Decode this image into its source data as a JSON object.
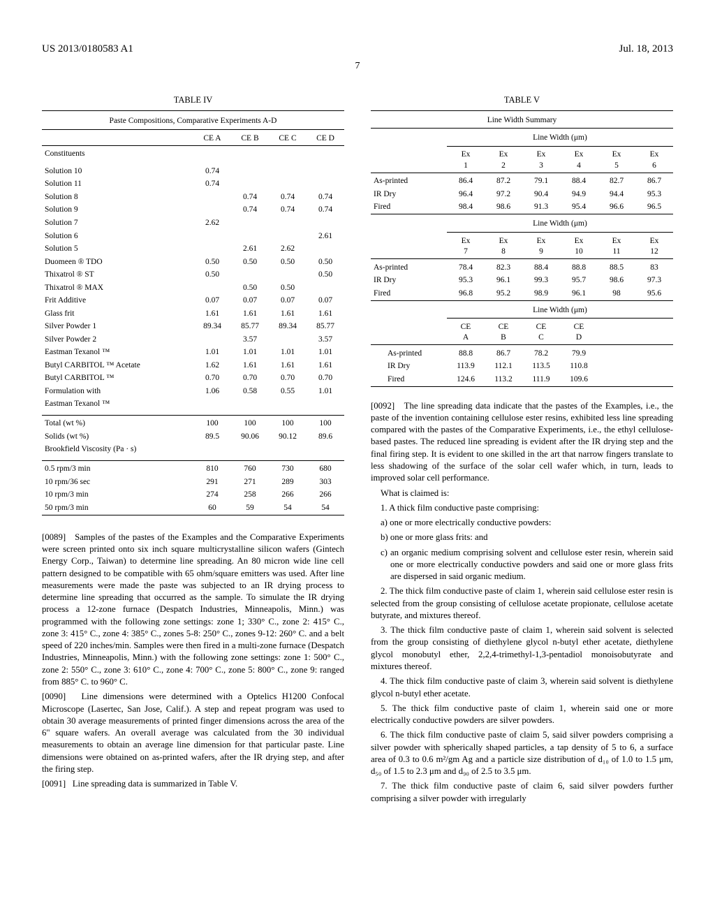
{
  "header": {
    "pub_number": "US 2013/0180583 A1",
    "date": "Jul. 18, 2013",
    "page_number": "7"
  },
  "table4": {
    "title": "TABLE IV",
    "subtitle": "Paste Compositions, Comparative Experiments A-D",
    "col_headers": [
      "CE A",
      "CE B",
      "CE C",
      "CE D"
    ],
    "constituents_label": "Constituents",
    "rows": [
      {
        "label": "Solution 10",
        "vals": [
          "0.74",
          "",
          "",
          ""
        ]
      },
      {
        "label": "Solution 11",
        "vals": [
          "0.74",
          "",
          "",
          ""
        ]
      },
      {
        "label": "Solution 8",
        "vals": [
          "",
          "0.74",
          "0.74",
          "0.74"
        ]
      },
      {
        "label": "Solution 9",
        "vals": [
          "",
          "0.74",
          "0.74",
          "0.74"
        ]
      },
      {
        "label": "Solution 7",
        "vals": [
          "2.62",
          "",
          "",
          ""
        ]
      },
      {
        "label": "Solution 6",
        "vals": [
          "",
          "",
          "",
          "2.61"
        ]
      },
      {
        "label": "Solution 5",
        "vals": [
          "",
          "2.61",
          "2.62",
          ""
        ]
      },
      {
        "label": "Duomeen ® TDO",
        "vals": [
          "0.50",
          "0.50",
          "0.50",
          "0.50"
        ]
      },
      {
        "label": "Thixatrol ® ST",
        "vals": [
          "0.50",
          "",
          "",
          "0.50"
        ]
      },
      {
        "label": "Thixatrol ® MAX",
        "vals": [
          "",
          "0.50",
          "0.50",
          ""
        ]
      },
      {
        "label": "Frit Additive",
        "vals": [
          "0.07",
          "0.07",
          "0.07",
          "0.07"
        ]
      },
      {
        "label": "Glass frit",
        "vals": [
          "1.61",
          "1.61",
          "1.61",
          "1.61"
        ]
      },
      {
        "label": "Silver Powder 1",
        "vals": [
          "89.34",
          "85.77",
          "89.34",
          "85.77"
        ]
      },
      {
        "label": "Silver Powder 2",
        "vals": [
          "",
          "3.57",
          "",
          "3.57"
        ]
      },
      {
        "label": "Eastman Texanol ™",
        "vals": [
          "1.01",
          "1.01",
          "1.01",
          "1.01"
        ]
      },
      {
        "label": "Butyl CARBITOL ™ Acetate",
        "vals": [
          "1.62",
          "1.61",
          "1.61",
          "1.61"
        ]
      },
      {
        "label": "Butyl CARBITOL ™",
        "vals": [
          "0.70",
          "0.70",
          "0.70",
          "0.70"
        ]
      },
      {
        "label": "Formulation with",
        "vals": [
          "1.06",
          "0.58",
          "0.55",
          "1.01"
        ]
      },
      {
        "label": "Eastman Texanol ™",
        "vals": [
          "",
          "",
          "",
          ""
        ]
      }
    ],
    "totals": [
      {
        "label": "Total (wt %)",
        "vals": [
          "100",
          "100",
          "100",
          "100"
        ]
      },
      {
        "label": "Solids (wt %)",
        "vals": [
          "89.5",
          "90.06",
          "90.12",
          "89.6"
        ]
      },
      {
        "label": "Brookfield Viscosity (Pa · s)",
        "vals": [
          "",
          "",
          "",
          ""
        ]
      }
    ],
    "visc": [
      {
        "label": "0.5 rpm/3 min",
        "vals": [
          "810",
          "760",
          "730",
          "680"
        ]
      },
      {
        "label": "10 rpm/36 sec",
        "vals": [
          "291",
          "271",
          "289",
          "303"
        ]
      },
      {
        "label": "10 rpm/3 min",
        "vals": [
          "274",
          "258",
          "266",
          "266"
        ]
      },
      {
        "label": "50 rpm/3 min",
        "vals": [
          "60",
          "59",
          "54",
          "54"
        ]
      }
    ]
  },
  "para89": {
    "num": "[0089]",
    "text": "Samples of the pastes of the Examples and the Comparative Experiments were screen printed onto six inch square multicrystalline silicon wafers (Gintech Energy Corp., Taiwan) to determine line spreading. An 80 micron wide line cell pattern designed to be compatible with 65 ohm/square emitters was used. After line measurements were made the paste was subjected to an IR drying process to determine line spreading that occurred as the sample. To simulate the IR drying process a 12-zone furnace (Despatch Industries, Minneapolis, Minn.) was programmed with the following zone settings: zone 1; 330° C., zone 2: 415° C., zone 3: 415° C., zone 4: 385° C., zones 5-8: 250° C., zones 9-12: 260° C. and a belt speed of 220 inches/min. Samples were then fired in a multi-zone furnace (Despatch Industries, Minneapolis, Minn.) with the following zone settings: zone 1: 500° C., zone 2: 550° C., zone 3: 610° C., zone 4: 700° C., zone 5: 800° C., zone 9: ranged from 885° C. to 960° C."
  },
  "para90": {
    "num": "[0090]",
    "text": "Line dimensions were determined with a Optelics H1200 Confocal Microscope (Lasertec, San Jose, Calif.). A step and repeat program was used to obtain 30 average measurements of printed finger dimensions across the area of the 6\" square wafers. An overall average was calculated from the 30 individual measurements to obtain an average line dimension for that particular paste. Line dimensions were obtained on as-printed wafers, after the IR drying step, and after the firing step."
  },
  "para91": {
    "num": "[0091]",
    "text": "Line spreading data is summarized in Table V."
  },
  "table5": {
    "title": "TABLE V",
    "subtitle": "Line Width Summary",
    "linewidth_label": "Line Width (μm)",
    "block1_headers": [
      "Ex\n1",
      "Ex\n2",
      "Ex\n3",
      "Ex\n4",
      "Ex\n5",
      "Ex\n6"
    ],
    "block1_rows": [
      {
        "label": "As-printed",
        "vals": [
          "86.4",
          "87.2",
          "79.1",
          "88.4",
          "82.7",
          "86.7"
        ]
      },
      {
        "label": "IR Dry",
        "vals": [
          "96.4",
          "97.2",
          "90.4",
          "94.9",
          "94.4",
          "95.3"
        ]
      },
      {
        "label": "Fired",
        "vals": [
          "98.4",
          "98.6",
          "91.3",
          "95.4",
          "96.6",
          "96.5"
        ]
      }
    ],
    "block2_headers": [
      "Ex\n7",
      "Ex\n8",
      "Ex\n9",
      "Ex\n10",
      "Ex\n11",
      "Ex\n12"
    ],
    "block2_rows": [
      {
        "label": "As-printed",
        "vals": [
          "78.4",
          "82.3",
          "88.4",
          "88.8",
          "88.5",
          "83"
        ]
      },
      {
        "label": "IR Dry",
        "vals": [
          "95.3",
          "96.1",
          "99.3",
          "95.7",
          "98.6",
          "97.3"
        ]
      },
      {
        "label": "Fired",
        "vals": [
          "96.8",
          "95.2",
          "98.9",
          "96.1",
          "98",
          "95.6"
        ]
      }
    ],
    "block3_headers": [
      "CE\nA",
      "CE\nB",
      "CE\nC",
      "CE\nD"
    ],
    "block3_rows": [
      {
        "label": "As-printed",
        "vals": [
          "88.8",
          "86.7",
          "78.2",
          "79.9"
        ]
      },
      {
        "label": "IR Dry",
        "vals": [
          "113.9",
          "112.1",
          "113.5",
          "110.8"
        ]
      },
      {
        "label": "Fired",
        "vals": [
          "124.6",
          "113.2",
          "111.9",
          "109.6"
        ]
      }
    ]
  },
  "para92": {
    "num": "[0092]",
    "text": "The line spreading data indicate that the pastes of the Examples, i.e., the paste of the invention containing cellulose ester resins, exhibited less line spreading compared with the pastes of the Comparative Experiments, i.e., the ethyl cellulose-based pastes. The reduced line spreading is evident after the IR drying step and the final firing step. It is evident to one skilled in the art that narrow fingers translate to less shadowing of the surface of the solar cell wafer which, in turn, leads to improved solar cell performance."
  },
  "claims": {
    "intro": "What is claimed is:",
    "c1": "1. A thick film conductive paste comprising:",
    "c1a": "a) one or more electrically conductive powders:",
    "c1b": "b) one or more glass frits: and",
    "c1c": "c) an organic medium comprising solvent and cellulose ester resin, wherein said one or more electrically conductive powders and said one or more glass frits are dispersed in said organic medium.",
    "c2": "2. The thick film conductive paste of claim 1, wherein said cellulose ester resin is selected from the group consisting of cellulose acetate propionate, cellulose acetate butyrate, and mixtures thereof.",
    "c3": "3. The thick film conductive paste of claim 1, wherein said solvent is selected from the group consisting of diethylene glycol n-butyl ether acetate, diethylene glycol monobutyl ether, 2,2,4-trimethyl-1,3-pentadiol monoisobutyrate and mixtures thereof.",
    "c4": "4. The thick film conductive paste of claim 3, wherein said solvent is diethylene glycol n-butyl ether acetate.",
    "c5": "5. The thick film conductive paste of claim 1, wherein said one or more electrically conductive powders are silver powders.",
    "c6": "6. The thick film conductive paste of claim 5, said silver powders comprising a silver powder with spherically shaped particles, a tap density of 5 to 6, a surface area of 0.3 to 0.6 m²/gm Ag and a particle size distribution of d₁₀ of 1.0 to 1.5 μm, d₅₀ of 1.5 to 2.3 μm and d₉₀ of 2.5 to 3.5 μm.",
    "c7": "7. The thick film conductive paste of claim 6, said silver powders further comprising a silver powder with irregularly"
  }
}
